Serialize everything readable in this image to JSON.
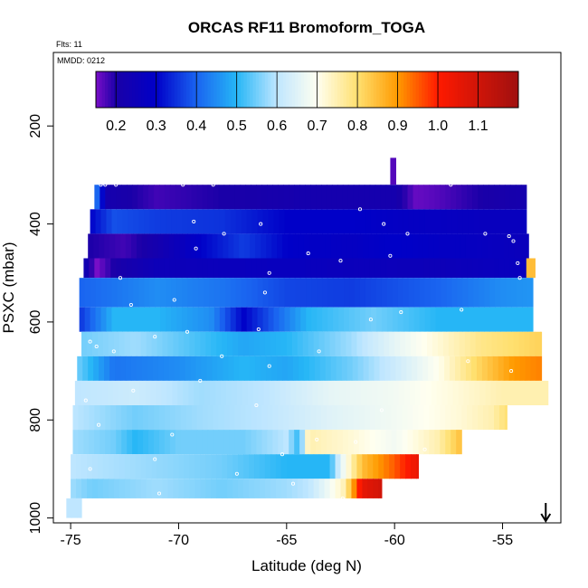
{
  "chart_data": {
    "type": "heatmap",
    "title": "ORCAS RF11 Bromoform_TOGA",
    "annotations": {
      "flights": "Flts: 11",
      "date": "MMDD: 0212"
    },
    "xlabel": "Latitude (deg N)",
    "ylabel": "PSXC (mbar)",
    "xlim": [
      -75.8,
      -52.3
    ],
    "ylim": [
      1010,
      50
    ],
    "x_ticks": [
      -75,
      -70,
      -65,
      -60,
      -55
    ],
    "x_tick_labels": [
      "-75",
      "-70",
      "-65",
      "-60",
      "-55"
    ],
    "y_ticks": [
      200,
      400,
      600,
      800,
      1000
    ],
    "y_tick_labels": [
      "200",
      "400",
      "600",
      "800",
      "1000"
    ],
    "colorbar": {
      "range": [
        0.15,
        1.2
      ],
      "ticks": [
        0.2,
        0.3,
        0.4,
        0.5,
        0.6,
        0.7,
        0.8,
        0.9,
        1.0,
        1.1
      ],
      "tick_labels": [
        "0.2",
        "0.3",
        "0.4",
        "0.5",
        "0.6",
        "0.7",
        "0.8",
        "0.9",
        "1.0",
        "1.1"
      ],
      "stops": [
        [
          0.15,
          "#7a0ec8"
        ],
        [
          0.2,
          "#1a00a8"
        ],
        [
          0.3,
          "#0000c8"
        ],
        [
          0.4,
          "#1a64f0"
        ],
        [
          0.5,
          "#26b6f6"
        ],
        [
          0.6,
          "#bfe6ff"
        ],
        [
          0.7,
          "#fffff0"
        ],
        [
          0.8,
          "#ffe070"
        ],
        [
          0.9,
          "#ff9a00"
        ],
        [
          1.0,
          "#ff1a00"
        ],
        [
          1.2,
          "#a01010"
        ]
      ]
    },
    "bands": [
      {
        "p_top": 320,
        "p_bot": 370,
        "lat_start": -73.9,
        "lat_end": -53.9,
        "profile": [
          [
            -73.9,
            0.45
          ],
          [
            -73.3,
            0.22
          ],
          [
            -71,
            0.18
          ],
          [
            -68,
            0.2
          ],
          [
            -64,
            0.22
          ],
          [
            -60,
            0.22
          ],
          [
            -59,
            0.16
          ],
          [
            -58,
            0.17
          ],
          [
            -56,
            0.2
          ],
          [
            -53.9,
            0.22
          ]
        ]
      },
      {
        "p_top": 370,
        "p_bot": 420,
        "lat_start": -74.1,
        "lat_end": -53.9,
        "profile": [
          [
            -74.1,
            0.3
          ],
          [
            -73,
            0.38
          ],
          [
            -71,
            0.36
          ],
          [
            -68,
            0.35
          ],
          [
            -65,
            0.3
          ],
          [
            -62,
            0.3
          ],
          [
            -59,
            0.28
          ],
          [
            -56,
            0.27
          ],
          [
            -53.9,
            0.27
          ]
        ]
      },
      {
        "p_top": 420,
        "p_bot": 470,
        "lat_start": -74.2,
        "lat_end": -53.8,
        "profile": [
          [
            -74.2,
            0.2
          ],
          [
            -72.5,
            0.18
          ],
          [
            -71,
            0.22
          ],
          [
            -69,
            0.3
          ],
          [
            -67,
            0.36
          ],
          [
            -65,
            0.3
          ],
          [
            -62,
            0.28
          ],
          [
            -60,
            0.3
          ],
          [
            -57,
            0.28
          ],
          [
            -53.8,
            0.26
          ]
        ]
      },
      {
        "p_top": 470,
        "p_bot": 510,
        "lat_start": -74.4,
        "lat_end": -53.5,
        "profile": [
          [
            -74.4,
            0.25
          ],
          [
            -73.8,
            0.15
          ],
          [
            -73,
            0.2
          ],
          [
            -71,
            0.25
          ],
          [
            -68,
            0.26
          ],
          [
            -65,
            0.27
          ],
          [
            -62,
            0.26
          ],
          [
            -58,
            0.25
          ],
          [
            -54,
            0.27
          ],
          [
            -53.8,
            0.85
          ]
        ]
      },
      {
        "p_top": 510,
        "p_bot": 570,
        "lat_start": -74.6,
        "lat_end": -53.6,
        "profile": [
          [
            -74.6,
            0.4
          ],
          [
            -73,
            0.42
          ],
          [
            -71,
            0.45
          ],
          [
            -68,
            0.42
          ],
          [
            -65,
            0.37
          ],
          [
            -62,
            0.36
          ],
          [
            -58,
            0.4
          ],
          [
            -55,
            0.45
          ],
          [
            -53.6,
            0.46
          ]
        ]
      },
      {
        "p_top": 570,
        "p_bot": 620,
        "lat_start": -74.6,
        "lat_end": -53.6,
        "profile": [
          [
            -74.6,
            0.35
          ],
          [
            -73,
            0.5
          ],
          [
            -71,
            0.5
          ],
          [
            -68.5,
            0.45
          ],
          [
            -67,
            0.3
          ],
          [
            -64,
            0.5
          ],
          [
            -61,
            0.55
          ],
          [
            -58,
            0.5
          ],
          [
            -55,
            0.5
          ],
          [
            -53.6,
            0.5
          ]
        ]
      },
      {
        "p_top": 620,
        "p_bot": 670,
        "lat_start": -74.5,
        "lat_end": -53.2,
        "profile": [
          [
            -74.5,
            0.55
          ],
          [
            -72,
            0.58
          ],
          [
            -69,
            0.52
          ],
          [
            -67,
            0.48
          ],
          [
            -65,
            0.5
          ],
          [
            -62,
            0.58
          ],
          [
            -60,
            0.66
          ],
          [
            -58,
            0.72
          ],
          [
            -56,
            0.78
          ],
          [
            -53.2,
            0.82
          ]
        ]
      },
      {
        "p_top": 670,
        "p_bot": 720,
        "lat_start": -74.7,
        "lat_end": -53.2,
        "profile": [
          [
            -74.7,
            0.55
          ],
          [
            -73,
            0.42
          ],
          [
            -70,
            0.45
          ],
          [
            -67,
            0.5
          ],
          [
            -65,
            0.48
          ],
          [
            -62,
            0.55
          ],
          [
            -60,
            0.62
          ],
          [
            -58,
            0.7
          ],
          [
            -56,
            0.82
          ],
          [
            -54.5,
            0.9
          ],
          [
            -53.2,
            0.92
          ]
        ]
      },
      {
        "p_top": 720,
        "p_bot": 770,
        "lat_start": -74.8,
        "lat_end": -52.9,
        "profile": [
          [
            -74.8,
            0.6
          ],
          [
            -72,
            0.62
          ],
          [
            -69,
            0.58
          ],
          [
            -66,
            0.6
          ],
          [
            -63,
            0.66
          ],
          [
            -60,
            0.68
          ],
          [
            -57,
            0.72
          ],
          [
            -55,
            0.75
          ],
          [
            -52.9,
            0.75
          ]
        ]
      },
      {
        "p_top": 770,
        "p_bot": 820,
        "lat_start": -74.9,
        "lat_end": -54.8,
        "profile": [
          [
            -74.9,
            0.6
          ],
          [
            -72,
            0.55
          ],
          [
            -69,
            0.58
          ],
          [
            -66,
            0.6
          ],
          [
            -63,
            0.65
          ],
          [
            -60,
            0.68
          ],
          [
            -57,
            0.72
          ],
          [
            -55.5,
            0.75
          ],
          [
            -54.8,
            0.8
          ]
        ]
      },
      {
        "p_top": 820,
        "p_bot": 870,
        "lat_start": -74.9,
        "lat_end": -56.9,
        "profile": [
          [
            -74.9,
            0.58
          ],
          [
            -73,
            0.55
          ],
          [
            -72,
            0.5
          ],
          [
            -70,
            0.55
          ],
          [
            -67,
            0.55
          ],
          [
            -65,
            0.6
          ],
          [
            -64.4,
            0.5
          ],
          [
            -64,
            0.75
          ],
          [
            -62,
            0.72
          ],
          [
            -60,
            0.68
          ],
          [
            -58,
            0.75
          ],
          [
            -56.9,
            0.85
          ]
        ]
      },
      {
        "p_top": 870,
        "p_bot": 920,
        "lat_start": -75.0,
        "lat_end": -58.9,
        "profile": [
          [
            -75,
            0.6
          ],
          [
            -72,
            0.58
          ],
          [
            -68,
            0.55
          ],
          [
            -65,
            0.5
          ],
          [
            -63,
            0.5
          ],
          [
            -62.5,
            0.65
          ],
          [
            -61.5,
            0.85
          ],
          [
            -60,
            0.95
          ],
          [
            -58.9,
            1.05
          ]
        ]
      },
      {
        "p_top": 920,
        "p_bot": 960,
        "lat_start": -75.0,
        "lat_end": -60.6,
        "profile": [
          [
            -75,
            0.58
          ],
          [
            -74,
            0.55
          ],
          [
            -71,
            0.58
          ],
          [
            -68,
            0.55
          ],
          [
            -65,
            0.58
          ],
          [
            -64,
            0.6
          ],
          [
            -63,
            0.68
          ],
          [
            -62.3,
            0.75
          ],
          [
            -61.5,
            1.05
          ],
          [
            -60.6,
            1.1
          ]
        ]
      },
      {
        "p_top": 960,
        "p_bot": 1000,
        "lat_start": -75.2,
        "lat_end": -74.5,
        "profile": [
          [
            -75.2,
            0.6
          ],
          [
            -74.5,
            0.6
          ]
        ]
      },
      {
        "p_top": 265,
        "p_bot": 320,
        "lat_start": -60.2,
        "lat_end": -59.95,
        "profile": [
          [
            -60.2,
            0.17
          ],
          [
            -59.95,
            0.17
          ]
        ]
      }
    ],
    "sample_points": [
      [
        -73.6,
        320
      ],
      [
        -73.4,
        320
      ],
      [
        -72.9,
        320
      ],
      [
        -69.8,
        320
      ],
      [
        -68.4,
        320
      ],
      [
        -57.4,
        320
      ],
      [
        -61.6,
        370
      ],
      [
        -69.3,
        395
      ],
      [
        -66.2,
        400
      ],
      [
        -60.5,
        400
      ],
      [
        -67.9,
        420
      ],
      [
        -59.4,
        420
      ],
      [
        -55.8,
        420
      ],
      [
        -54.7,
        425
      ],
      [
        -54.5,
        435
      ],
      [
        -69.2,
        450
      ],
      [
        -64.0,
        460
      ],
      [
        -60.2,
        465
      ],
      [
        -62.5,
        475
      ],
      [
        -54.3,
        480
      ],
      [
        -65.8,
        500
      ],
      [
        -72.7,
        510
      ],
      [
        -54.2,
        510
      ],
      [
        -66.0,
        540
      ],
      [
        -70.2,
        555
      ],
      [
        -72.2,
        565
      ],
      [
        -56.9,
        575
      ],
      [
        -59.7,
        580
      ],
      [
        -61.1,
        595
      ],
      [
        -66.3,
        615
      ],
      [
        -69.6,
        620
      ],
      [
        -71.1,
        630
      ],
      [
        -74.1,
        640
      ],
      [
        -73.8,
        650
      ],
      [
        -73.0,
        660
      ],
      [
        -68.0,
        670
      ],
      [
        -65.8,
        690
      ],
      [
        -63.5,
        660
      ],
      [
        -56.6,
        680
      ],
      [
        -54.6,
        700
      ],
      [
        -69.0,
        720
      ],
      [
        -72.1,
        740
      ],
      [
        -74.3,
        760
      ],
      [
        -66.4,
        770
      ],
      [
        -60.6,
        780
      ],
      [
        -73.7,
        810
      ],
      [
        -70.3,
        830
      ],
      [
        -63.6,
        840
      ],
      [
        -61.8,
        845
      ],
      [
        -58.6,
        860
      ],
      [
        -65.2,
        870
      ],
      [
        -71.1,
        880
      ],
      [
        -74.1,
        900
      ],
      [
        -67.3,
        910
      ],
      [
        -64.7,
        930
      ],
      [
        -62.4,
        960
      ],
      [
        -70.9,
        950
      ]
    ],
    "arrow_at_lat": -53.0
  }
}
